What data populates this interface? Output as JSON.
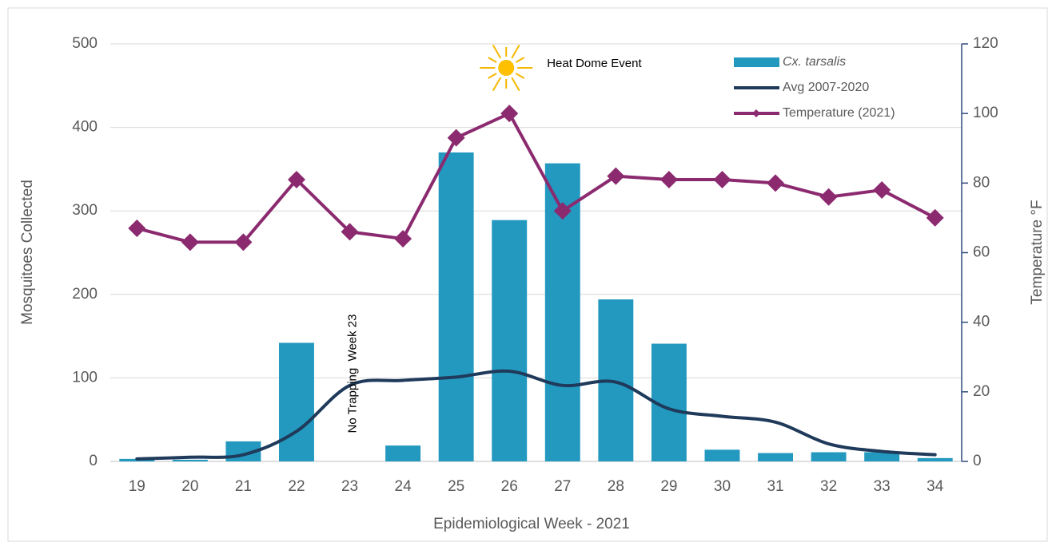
{
  "chart_data": {
    "type": "bar_line",
    "x_label": "Epidemiological Week - 2021",
    "y_label": "Mosquitoes Collected",
    "y2_label": "Temperature °F",
    "categories": [
      "19",
      "20",
      "21",
      "22",
      "23",
      "24",
      "25",
      "26",
      "27",
      "28",
      "29",
      "30",
      "31",
      "32",
      "33",
      "34"
    ],
    "series": [
      {
        "name": "Cx. tarsalis",
        "type": "bar",
        "color": "#2399c0",
        "values": [
          3,
          2,
          24,
          142,
          null,
          19,
          370,
          289,
          357,
          194,
          141,
          14,
          10,
          11,
          11,
          4
        ]
      },
      {
        "name": "Avg 2007-2020",
        "type": "line",
        "smooth": true,
        "color": "#1f3a5a",
        "values": [
          3,
          5,
          8,
          36,
          91,
          97,
          101,
          108,
          91,
          95,
          63,
          54,
          47,
          21,
          12,
          8
        ]
      },
      {
        "name": "Temperature (2021)",
        "type": "line",
        "marker": "diamond",
        "axis": "y2",
        "color": "#8b2a6f",
        "values": [
          67,
          63,
          63,
          81,
          66,
          64,
          93,
          100,
          72,
          82,
          81,
          81,
          80,
          76,
          78,
          70
        ]
      }
    ],
    "ylim": [
      0,
      500
    ],
    "yticks": [
      0,
      100,
      200,
      300,
      400,
      500
    ],
    "y2lim": [
      0,
      120
    ],
    "y2ticks": [
      0,
      20,
      40,
      60,
      80,
      100,
      120
    ],
    "grid": true,
    "legend": "top-right",
    "annotations": [
      {
        "text": "Heat Dome Event",
        "category": "26"
      },
      {
        "text": "No Trapping  Week 23",
        "category": "23"
      }
    ]
  }
}
